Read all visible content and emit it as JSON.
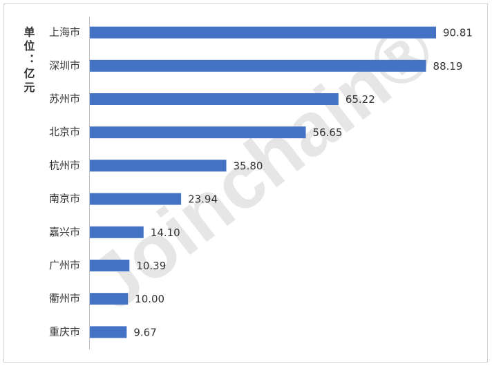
{
  "chart_data": {
    "type": "bar",
    "orientation": "horizontal",
    "y_axis_title": "单位：亿元",
    "watermark": "Joinchain®",
    "categories": [
      "上海市",
      "深圳市",
      "苏州市",
      "北京市",
      "杭州市",
      "南京市",
      "嘉兴市",
      "广州市",
      "衢州市",
      "重庆市"
    ],
    "values": [
      90.81,
      88.19,
      65.22,
      56.65,
      35.8,
      23.94,
      14.1,
      10.39,
      10.0,
      9.67
    ],
    "value_labels": [
      "90.81",
      "88.19",
      "65.22",
      "56.65",
      "35.80",
      "23.94",
      "14.10",
      "10.39",
      "10.00",
      "9.67"
    ],
    "color": "#4472c4"
  }
}
